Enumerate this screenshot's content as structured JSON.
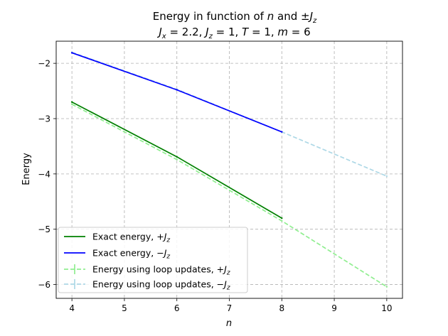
{
  "chart_data": {
    "type": "line",
    "title": "Energy in function of n and ±J_z",
    "subtitle": "J_x = 2.2, J_z = 1, T = 1, m = 6",
    "xlabel": "n",
    "ylabel": "Energy",
    "xlim": [
      3.7,
      10.3
    ],
    "ylim": [
      -6.25,
      -1.6
    ],
    "xticks": [
      4,
      5,
      6,
      7,
      8,
      9,
      10
    ],
    "yticks": [
      -6,
      -5,
      -4,
      -3,
      -2
    ],
    "grid": true,
    "legend_position": "lower-left",
    "series": [
      {
        "name": "Exact energy, +J_z",
        "color": "#008000",
        "style": "solid",
        "x": [
          4,
          6,
          8
        ],
        "y": [
          -2.7,
          -3.69,
          -4.8
        ]
      },
      {
        "name": "Exact energy, −J_z",
        "color": "#0000ff",
        "style": "solid",
        "x": [
          4,
          6,
          8
        ],
        "y": [
          -1.81,
          -2.48,
          -3.24
        ]
      },
      {
        "name": "Energy using loop updates, +J_z",
        "color": "#90ee90",
        "style": "dashed",
        "x": [
          4,
          6,
          8,
          10
        ],
        "y": [
          -2.74,
          -3.74,
          -4.85,
          -6.04
        ]
      },
      {
        "name": "Energy using loop updates, −J_z",
        "color": "#add8e6",
        "style": "dashed",
        "x": [
          4,
          6,
          8,
          10
        ],
        "y": [
          -1.8,
          -2.47,
          -3.24,
          -4.04
        ]
      }
    ]
  }
}
